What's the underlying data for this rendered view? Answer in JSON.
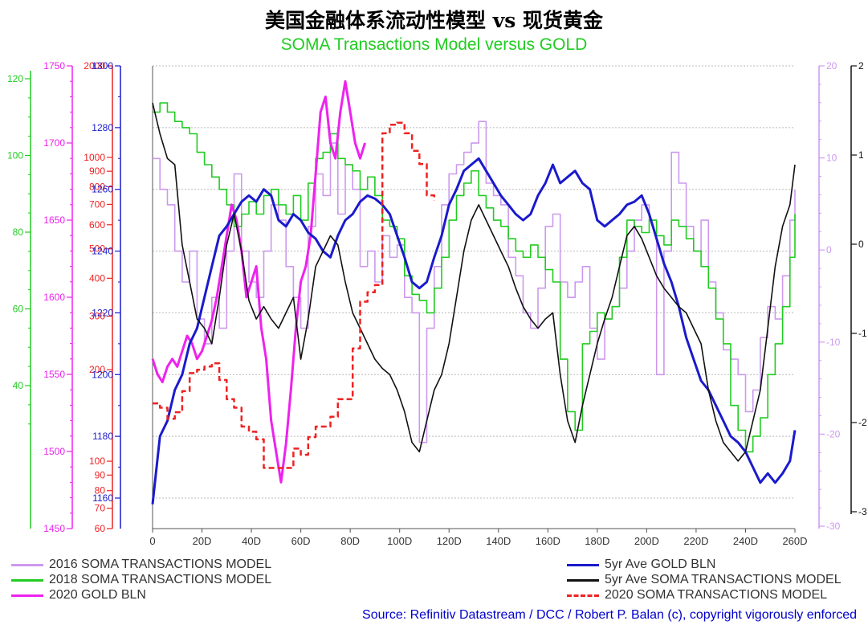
{
  "title": "美国金融体系流动性模型 vs 现货黄金",
  "subtitle": "SOMA Transactions Model versus GOLD",
  "source": "Source: Refinitiv Datastream / DCC / Robert P. Balan (c), copyright vigorously enforced",
  "legend": {
    "items": [
      {
        "label": "2016 SOMA TRANSACTIONS MODEL",
        "color": "#cc99ee",
        "style": "solid"
      },
      {
        "label": "2018 SOMA TRANSACTIONS MODEL",
        "color": "#22cc22",
        "style": "solid"
      },
      {
        "label": "2020 GOLD BLN",
        "color": "#ee22ee",
        "style": "solid"
      },
      {
        "label": "5yr Ave GOLD BLN",
        "color": "#1a1acc",
        "style": "solid"
      },
      {
        "label": "5yr Ave SOMA TRANSACTIONS MODEL",
        "color": "#111111",
        "style": "solid"
      },
      {
        "label": "2020 SOMA TRANSACTIONS MODEL",
        "color": "#ee2222",
        "style": "dashed"
      }
    ]
  },
  "chart_data": {
    "type": "line",
    "xlim": [
      0,
      260
    ],
    "x_ticks": [
      "0",
      "20D",
      "40D",
      "60D",
      "80D",
      "100D",
      "120D",
      "140D",
      "160D",
      "180D",
      "200D",
      "220D",
      "240D",
      "260D"
    ],
    "grid": "horizontal dotted",
    "axes": [
      {
        "id": "green",
        "side": "left",
        "color": "#22cc22",
        "ticks": [
          "40",
          "60",
          "80",
          "100",
          "120"
        ]
      },
      {
        "id": "magenta",
        "side": "left",
        "color": "#ee22ee",
        "ticks": [
          "1450",
          "1500",
          "1550",
          "1600",
          "1650",
          "1700",
          "1750"
        ]
      },
      {
        "id": "red",
        "side": "left",
        "color": "#ee2222",
        "scale": "log",
        "ticks": [
          "60",
          "70",
          "80",
          "90",
          "100",
          "200",
          "300",
          "400",
          "500",
          "600",
          "700",
          "800",
          "900",
          "1000",
          "2000"
        ]
      },
      {
        "id": "blue",
        "side": "left",
        "color": "#1a1acc",
        "ticks": [
          "1160",
          "1180",
          "1200",
          "1220",
          "1240",
          "1260",
          "1280",
          "1300"
        ]
      },
      {
        "id": "lavender",
        "side": "right",
        "color": "#cc99ee",
        "ticks": [
          "-30",
          "-20",
          "-10",
          "0",
          "10",
          "20"
        ]
      },
      {
        "id": "black",
        "side": "right",
        "color": "#111111",
        "ticks": [
          "-3",
          "-2",
          "-1",
          "0",
          "1",
          "2"
        ]
      }
    ],
    "series": [
      {
        "name": "2016 SOMA TRANSACTIONS MODEL",
        "axis": "blue",
        "color": "#cc99ee",
        "x": [
          0,
          3,
          6,
          9,
          12,
          15,
          18,
          21,
          24,
          27,
          30,
          33,
          36,
          39,
          42,
          45,
          48,
          51,
          54,
          57,
          60,
          63,
          66,
          69,
          72,
          75,
          78,
          81,
          84,
          87,
          90,
          93,
          96,
          99,
          102,
          105,
          108,
          111,
          114,
          117,
          120,
          123,
          126,
          129,
          132,
          135,
          138,
          141,
          144,
          147,
          150,
          153,
          156,
          159,
          162,
          165,
          168,
          171,
          174,
          177,
          180,
          183,
          186,
          189,
          192,
          195,
          198,
          201,
          204,
          207,
          210,
          213,
          216,
          219,
          222,
          225,
          228,
          231,
          234,
          237,
          240,
          243,
          246,
          249,
          252,
          255,
          258,
          260
        ],
        "y": [
          1270,
          1260,
          1255,
          1240,
          1230,
          1240,
          1218,
          1210,
          1225,
          1215,
          1240,
          1265,
          1240,
          1230,
          1225,
          1240,
          1255,
          1250,
          1235,
          1225,
          1215,
          1248,
          1265,
          1258,
          1275,
          1252,
          1268,
          1260,
          1235,
          1240,
          1230,
          1245,
          1238,
          1242,
          1225,
          1220,
          1178,
          1215,
          1235,
          1255,
          1265,
          1268,
          1272,
          1275,
          1282,
          1262,
          1258,
          1255,
          1238,
          1232,
          1220,
          1215,
          1228,
          1248,
          1252,
          1230,
          1225,
          1230,
          1235,
          1215,
          1205,
          1218,
          1222,
          1228,
          1240,
          1250,
          1255,
          1250,
          1200,
          1240,
          1272,
          1262,
          1248,
          1240,
          1250,
          1230,
          1220,
          1208,
          1205,
          1200,
          1188,
          1195,
          1212,
          1222,
          1218,
          1232,
          1250,
          1260
        ]
      },
      {
        "name": "2018 SOMA TRANSACTIONS MODEL",
        "axis": "blue",
        "color": "#22cc22",
        "x": [
          0,
          3,
          6,
          9,
          12,
          15,
          18,
          21,
          24,
          27,
          30,
          33,
          36,
          39,
          42,
          45,
          48,
          51,
          54,
          57,
          60,
          63,
          66,
          69,
          72,
          75,
          78,
          81,
          84,
          87,
          90,
          93,
          96,
          99,
          102,
          105,
          108,
          111,
          114,
          117,
          120,
          123,
          126,
          129,
          132,
          135,
          138,
          141,
          144,
          147,
          150,
          153,
          156,
          159,
          162,
          165,
          168,
          171,
          174,
          177,
          180,
          183,
          186,
          189,
          192,
          195,
          198,
          201,
          204,
          207,
          210,
          213,
          216,
          219,
          222,
          225,
          228,
          231,
          234,
          237,
          240,
          243,
          246,
          249,
          252,
          255,
          258,
          260
        ],
        "y": [
          1285,
          1288,
          1285,
          1282,
          1280,
          1278,
          1272,
          1268,
          1264,
          1260,
          1255,
          1248,
          1252,
          1256,
          1252,
          1258,
          1260,
          1255,
          1252,
          1258,
          1250,
          1262,
          1270,
          1272,
          1278,
          1270,
          1268,
          1266,
          1260,
          1264,
          1258,
          1250,
          1248,
          1244,
          1232,
          1226,
          1224,
          1220,
          1228,
          1238,
          1250,
          1258,
          1262,
          1266,
          1258,
          1254,
          1250,
          1248,
          1244,
          1240,
          1238,
          1242,
          1238,
          1234,
          1230,
          1205,
          1188,
          1182,
          1210,
          1214,
          1220,
          1218,
          1222,
          1238,
          1250,
          1248,
          1246,
          1250,
          1245,
          1242,
          1250,
          1248,
          1244,
          1240,
          1235,
          1228,
          1218,
          1210,
          1190,
          1182,
          1175,
          1180,
          1186,
          1200,
          1210,
          1222,
          1238,
          1252
        ]
      },
      {
        "name": "2020 GOLD BLN",
        "axis": "magenta",
        "color": "#ee22ee",
        "x": [
          0,
          2,
          4,
          6,
          8,
          10,
          12,
          14,
          16,
          18,
          20,
          22,
          24,
          26,
          28,
          30,
          32,
          34,
          36,
          38,
          40,
          42,
          44,
          46,
          48,
          50,
          52,
          54,
          56,
          58,
          60,
          62,
          64,
          66,
          68,
          70,
          72,
          74,
          76,
          78,
          80,
          82,
          84,
          86
        ],
        "y": [
          1560,
          1550,
          1545,
          1555,
          1560,
          1555,
          1565,
          1575,
          1570,
          1560,
          1565,
          1575,
          1585,
          1600,
          1620,
          1640,
          1660,
          1650,
          1630,
          1600,
          1610,
          1620,
          1580,
          1560,
          1520,
          1500,
          1480,
          1505,
          1540,
          1580,
          1610,
          1620,
          1640,
          1680,
          1720,
          1730,
          1700,
          1690,
          1720,
          1740,
          1720,
          1700,
          1690,
          1700
        ]
      },
      {
        "name": "5yr Ave GOLD BLN",
        "axis": "blue",
        "color": "#1a1acc",
        "x": [
          0,
          3,
          6,
          9,
          12,
          15,
          18,
          21,
          24,
          27,
          30,
          33,
          36,
          39,
          42,
          45,
          48,
          51,
          54,
          57,
          60,
          63,
          66,
          69,
          72,
          75,
          78,
          81,
          84,
          87,
          90,
          93,
          96,
          99,
          102,
          105,
          108,
          111,
          114,
          117,
          120,
          123,
          126,
          129,
          132,
          135,
          138,
          141,
          144,
          147,
          150,
          153,
          156,
          159,
          162,
          165,
          168,
          171,
          174,
          177,
          180,
          183,
          186,
          189,
          192,
          195,
          198,
          201,
          204,
          207,
          210,
          213,
          216,
          219,
          222,
          225,
          228,
          231,
          234,
          237,
          240,
          243,
          246,
          249,
          252,
          255,
          258,
          260
        ],
        "y": [
          1158,
          1180,
          1185,
          1195,
          1200,
          1210,
          1215,
          1225,
          1235,
          1245,
          1248,
          1252,
          1256,
          1258,
          1256,
          1260,
          1258,
          1250,
          1248,
          1252,
          1250,
          1246,
          1244,
          1240,
          1238,
          1245,
          1250,
          1252,
          1256,
          1258,
          1257,
          1255,
          1252,
          1245,
          1238,
          1230,
          1228,
          1230,
          1238,
          1245,
          1255,
          1260,
          1266,
          1268,
          1270,
          1266,
          1262,
          1258,
          1255,
          1252,
          1250,
          1252,
          1258,
          1262,
          1268,
          1262,
          1264,
          1266,
          1262,
          1260,
          1250,
          1248,
          1250,
          1252,
          1255,
          1256,
          1258,
          1252,
          1244,
          1236,
          1230,
          1222,
          1212,
          1205,
          1198,
          1195,
          1190,
          1185,
          1180,
          1178,
          1175,
          1170,
          1165,
          1168,
          1165,
          1168,
          1172,
          1182
        ]
      },
      {
        "name": "5yr Ave SOMA TRANSACTIONS MODEL",
        "axis": "blue",
        "color": "#111111",
        "x": [
          0,
          3,
          6,
          9,
          12,
          15,
          18,
          21,
          24,
          27,
          30,
          33,
          36,
          39,
          42,
          45,
          48,
          51,
          54,
          57,
          60,
          63,
          66,
          69,
          72,
          75,
          78,
          81,
          84,
          87,
          90,
          93,
          96,
          99,
          102,
          105,
          108,
          111,
          114,
          117,
          120,
          123,
          126,
          129,
          132,
          135,
          138,
          141,
          144,
          147,
          150,
          153,
          156,
          159,
          162,
          165,
          168,
          171,
          174,
          177,
          180,
          183,
          186,
          189,
          192,
          195,
          198,
          201,
          204,
          207,
          210,
          213,
          216,
          219,
          222,
          225,
          228,
          231,
          234,
          237,
          240,
          243,
          246,
          249,
          252,
          255,
          258,
          260
        ],
        "y": [
          1288,
          1278,
          1270,
          1268,
          1242,
          1230,
          1218,
          1215,
          1210,
          1225,
          1242,
          1252,
          1240,
          1224,
          1218,
          1222,
          1218,
          1215,
          1220,
          1225,
          1205,
          1218,
          1235,
          1240,
          1245,
          1242,
          1230,
          1220,
          1215,
          1210,
          1205,
          1202,
          1200,
          1195,
          1188,
          1178,
          1175,
          1185,
          1195,
          1200,
          1210,
          1225,
          1240,
          1250,
          1255,
          1250,
          1245,
          1240,
          1235,
          1228,
          1222,
          1218,
          1215,
          1218,
          1220,
          1200,
          1185,
          1178,
          1190,
          1200,
          1210,
          1218,
          1225,
          1235,
          1245,
          1248,
          1244,
          1238,
          1232,
          1228,
          1225,
          1222,
          1220,
          1215,
          1210,
          1195,
          1185,
          1178,
          1175,
          1172,
          1175,
          1185,
          1195,
          1215,
          1235,
          1248,
          1255,
          1268
        ]
      },
      {
        "name": "2020 SOMA TRANSACTIONS MODEL",
        "axis": "red",
        "color": "#ee2222",
        "x": [
          0,
          3,
          6,
          9,
          12,
          15,
          18,
          21,
          24,
          27,
          30,
          33,
          36,
          39,
          42,
          45,
          48,
          51,
          54,
          57,
          60,
          63,
          66,
          69,
          72,
          75,
          78,
          81,
          84,
          87,
          90,
          93,
          96,
          99,
          102,
          105,
          108,
          111,
          114
        ],
        "y": [
          155,
          150,
          138,
          145,
          170,
          195,
          200,
          205,
          210,
          185,
          160,
          150,
          130,
          125,
          118,
          95,
          95,
          95,
          95,
          110,
          105,
          120,
          130,
          130,
          140,
          160,
          160,
          235,
          335,
          360,
          380,
          1200,
          1280,
          1300,
          1200,
          1050,
          950,
          750,
          720
        ]
      }
    ]
  }
}
